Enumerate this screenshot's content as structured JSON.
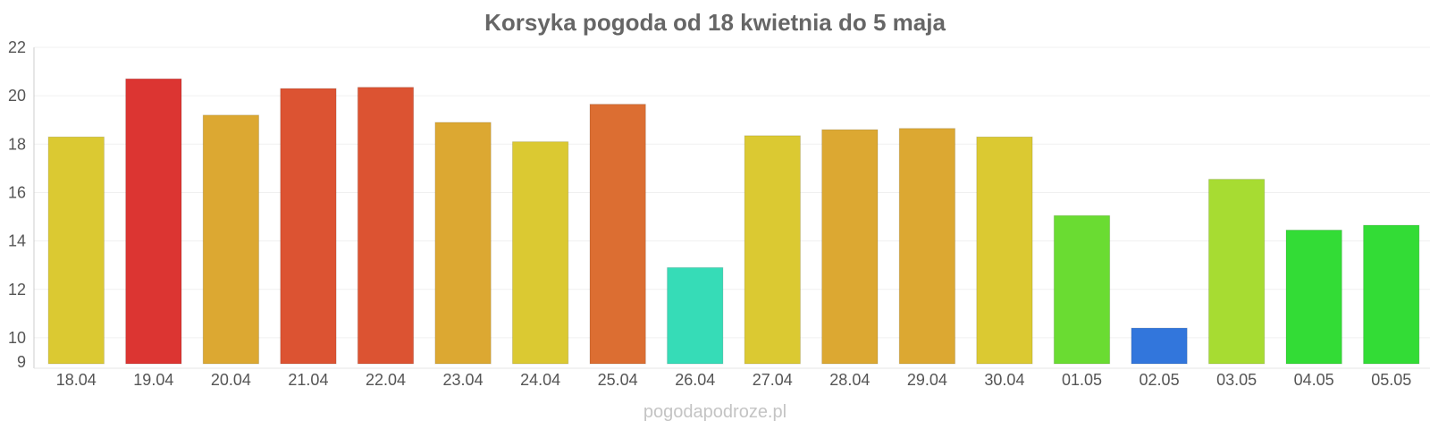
{
  "page": {
    "title": "Korsyka pogoda od 18 kwietnia do 5 maja",
    "watermark": "pogodapodroze.pl"
  },
  "chart_data": {
    "type": "bar",
    "title": "Korsyka pogoda od 18 kwietnia do 5 maja",
    "xlabel": "",
    "ylabel": "",
    "categories": [
      "18.04",
      "19.04",
      "20.04",
      "21.04",
      "22.04",
      "23.04",
      "24.04",
      "25.04",
      "26.04",
      "27.04",
      "28.04",
      "29.04",
      "30.04",
      "01.05",
      "02.05",
      "03.05",
      "04.05",
      "05.05"
    ],
    "values": [
      18.3,
      20.7,
      19.2,
      20.3,
      20.35,
      18.9,
      18.1,
      19.65,
      12.9,
      18.35,
      18.6,
      18.65,
      18.3,
      15.05,
      10.4,
      16.55,
      14.45,
      14.65
    ],
    "colors": [
      "#dbc932",
      "#dc3532",
      "#dca832",
      "#dc5332",
      "#dc5332",
      "#dca832",
      "#dbc932",
      "#dc6e32",
      "#36dcb7",
      "#dbc932",
      "#dca832",
      "#dca832",
      "#dbc932",
      "#6adc32",
      "#3276dc",
      "#a7dc32",
      "#33dc36",
      "#33dc36"
    ],
    "yticks": [
      9,
      10,
      12,
      14,
      16,
      18,
      20,
      22
    ],
    "ylim": [
      9,
      22
    ],
    "grid": true,
    "legend": "none"
  }
}
